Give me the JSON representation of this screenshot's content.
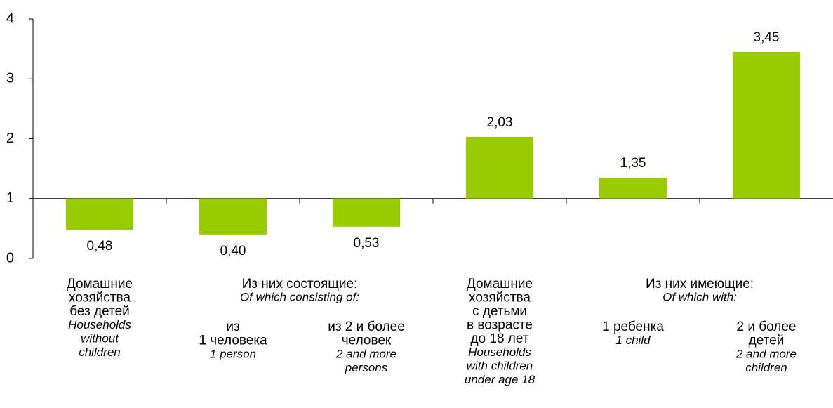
{
  "chart_data": {
    "type": "bar",
    "categories": [
      {
        "ru": [
          "Домашние",
          "хозяйства",
          "без детей"
        ],
        "en": [
          "Households",
          "without",
          "children"
        ]
      },
      {
        "ru": [
          "из",
          "1 человека"
        ],
        "en": [
          "1 person"
        ]
      },
      {
        "ru": [
          "из 2 и более",
          "человек"
        ],
        "en": [
          "2 and more",
          "persons"
        ]
      },
      {
        "ru": [
          "Домашние",
          "хозяйства",
          "с детьми",
          "в возрасте",
          "до 18 лет"
        ],
        "en": [
          "Households",
          "with children",
          "under age 18"
        ]
      },
      {
        "ru": [
          "1 ребенка"
        ],
        "en": [
          "1 child"
        ]
      },
      {
        "ru": [
          "2 и более",
          "детей"
        ],
        "en": [
          "2 and more",
          "children"
        ]
      }
    ],
    "groups": [
      {
        "ru": "Из них состоящие:",
        "en": "Of which consisting of:",
        "categories": [
          1,
          2
        ]
      },
      {
        "ru": "Из них имеющие:",
        "en": "Of which with:",
        "categories": [
          4,
          5
        ]
      }
    ],
    "values": [
      0.48,
      0.4,
      0.53,
      2.03,
      1.35,
      3.45
    ],
    "value_labels": [
      "0,48",
      "0,40",
      "0,53",
      "2,03",
      "1,35",
      "3,45"
    ],
    "color": "#99cc00",
    "bar_base": 1,
    "ylim": [
      0,
      4
    ],
    "yticks": [
      0,
      1,
      2,
      3,
      4
    ],
    "grid": false
  }
}
